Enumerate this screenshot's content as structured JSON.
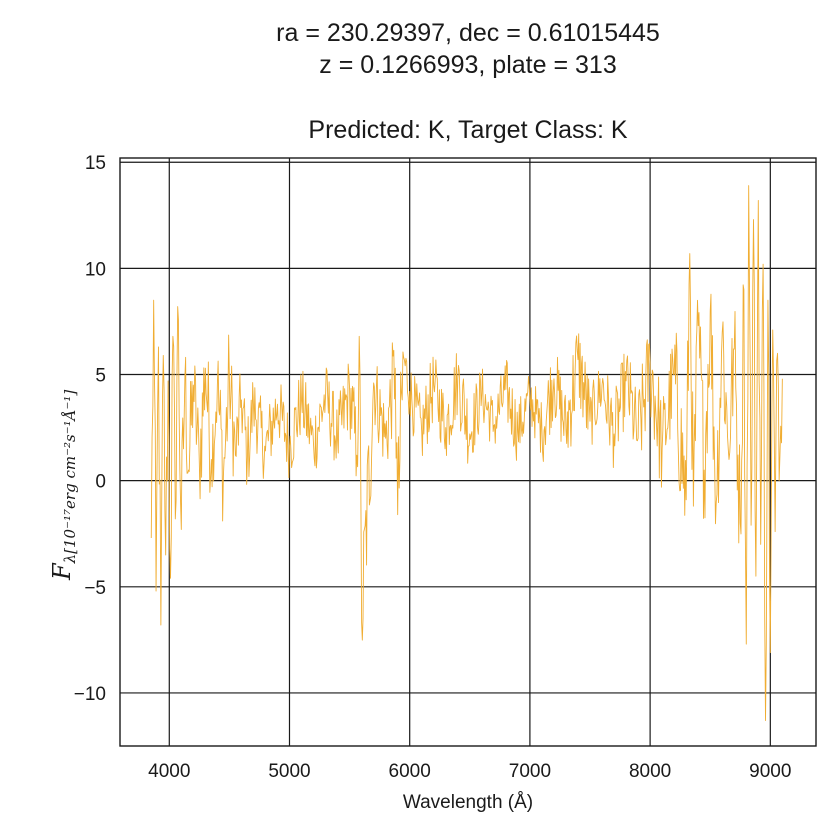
{
  "chart_data": {
    "type": "line",
    "title_lines": [
      "ra = 230.29397, dec = 0.61015445",
      "z = 0.1266993, plate = 313",
      "Predicted: K, Target Class: K"
    ],
    "xlabel": "Wavelength (Å)",
    "ylabel_main": "F",
    "ylabel_sub": "λ[10⁻¹⁷erg cm⁻²s⁻¹Å⁻¹]",
    "xlim": [
      3590,
      9380
    ],
    "ylim": [
      -12.5,
      15.2
    ],
    "x_ticks": [
      4000,
      5000,
      6000,
      7000,
      8000,
      9000
    ],
    "y_ticks": [
      15,
      10,
      5,
      0,
      -5,
      -10
    ],
    "y_tick_labels": [
      "15",
      "10",
      "5",
      "0",
      "−5",
      "−10"
    ],
    "grid": true,
    "series": [
      {
        "color": "#f0ad32",
        "x": [
          3850,
          3870,
          3890,
          3910,
          3930,
          3950,
          3970,
          3990,
          4010,
          4030,
          4050,
          4070,
          4100,
          4130,
          4160,
          4200,
          4250,
          4300,
          4350,
          4400,
          4450,
          4500,
          4550,
          4600,
          4650,
          4700,
          4800,
          4900,
          5000,
          5100,
          5200,
          5300,
          5400,
          5500,
          5560,
          5580,
          5600,
          5700,
          5800,
          5880,
          5900,
          5950,
          6000,
          6100,
          6200,
          6300,
          6400,
          6500,
          6600,
          6700,
          6800,
          6900,
          7000,
          7100,
          7200,
          7300,
          7400,
          7500,
          7600,
          7700,
          7800,
          7900,
          8000,
          8100,
          8200,
          8300,
          8330,
          8360,
          8400,
          8450,
          8500,
          8550,
          8600,
          8650,
          8700,
          8750,
          8780,
          8800,
          8820,
          8840,
          8860,
          8880,
          8900,
          8920,
          8940,
          8960,
          8980,
          9000,
          9020,
          9040,
          9060,
          9080,
          9100
        ],
        "y": [
          -2.7,
          8.5,
          -5.2,
          6.3,
          -6.8,
          5.9,
          -3.5,
          4.7,
          -4.6,
          6.8,
          -1.8,
          8.2,
          -2.3,
          4.9,
          0.5,
          4.5,
          0.8,
          5.3,
          1.0,
          4.5,
          0.2,
          4.8,
          1.2,
          3.8,
          1.1,
          3.6,
          1.4,
          3.6,
          1.6,
          3.8,
          1.7,
          4.0,
          1.9,
          4.3,
          1.2,
          6.8,
          -6.7,
          4.6,
          2.0,
          5.3,
          -1.6,
          5.8,
          4.2,
          2.3,
          4.5,
          2.5,
          4.8,
          2.2,
          4.1,
          2.6,
          4.3,
          2.3,
          3.9,
          2.4,
          4.8,
          2.4,
          5.7,
          2.8,
          4.5,
          2.2,
          4.7,
          2.0,
          5.5,
          1.5,
          5.0,
          -0.9,
          10.7,
          -1.2,
          7.3,
          0.5,
          8.0,
          -1.0,
          7.0,
          1.5,
          6.2,
          -2.0,
          9.0,
          -7.7,
          13.9,
          -2.1,
          12.3,
          -4.5,
          13.2,
          -3.0,
          10.2,
          -11.3,
          8.5,
          -8.1,
          7.1,
          -2.4,
          6.0,
          1.2,
          4.8
        ]
      }
    ]
  }
}
